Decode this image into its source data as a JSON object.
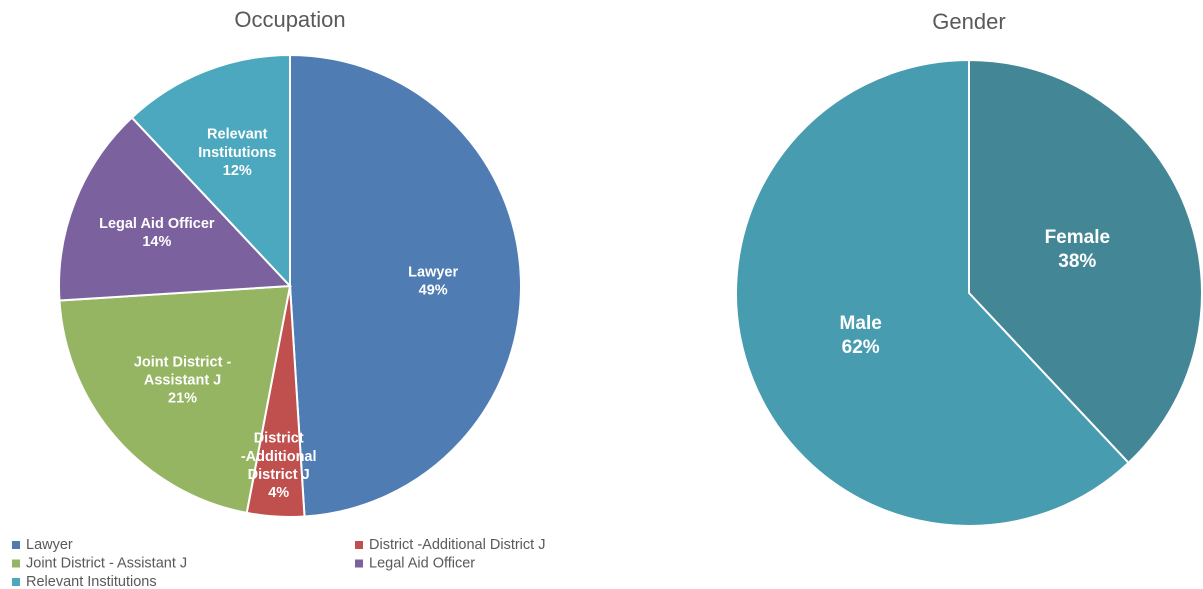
{
  "chart_data": [
    {
      "type": "pie",
      "title": "Occupation",
      "categories": [
        "Lawyer",
        "District -Additional District J",
        "Joint District - Assistant J",
        "Legal Aid Officer",
        "Relevant Institutions"
      ],
      "values": [
        49,
        4,
        21,
        14,
        12
      ],
      "value_labels": [
        "49%",
        "4%",
        "21%",
        "14%",
        "12%"
      ],
      "colors": [
        "#4f7cb2",
        "#c0504d",
        "#95b562",
        "#7b629f",
        "#4ba8be"
      ],
      "legend": "bottom"
    },
    {
      "type": "pie",
      "title": "Gender",
      "categories": [
        "Female",
        "Male"
      ],
      "values": [
        38,
        62
      ],
      "value_labels": [
        "38%",
        "62%"
      ],
      "colors": [
        "#438796",
        "#479cb0"
      ]
    }
  ]
}
